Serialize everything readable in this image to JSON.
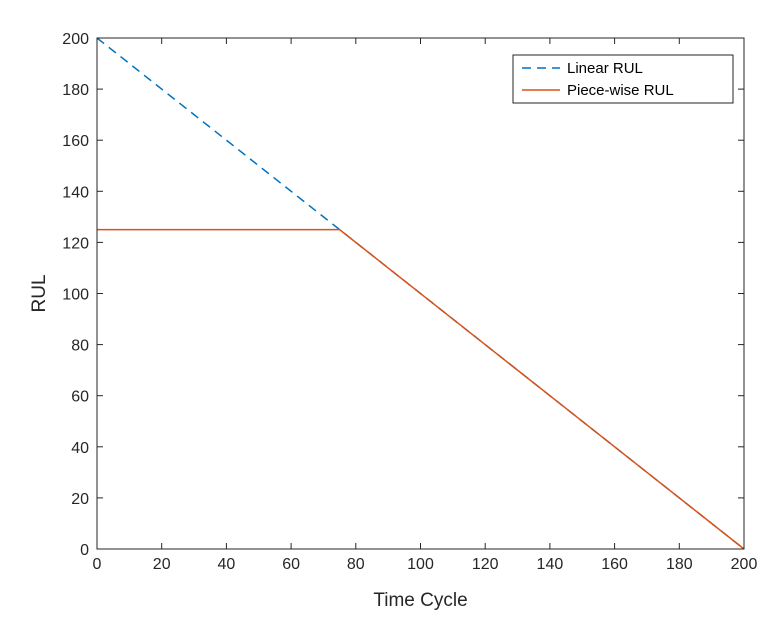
{
  "chart_data": {
    "type": "line",
    "xlabel": "Time Cycle",
    "ylabel": "RUL",
    "xlim": [
      0,
      200
    ],
    "ylim": [
      0,
      200
    ],
    "xticks": [
      "0",
      "20",
      "40",
      "60",
      "80",
      "100",
      "120",
      "140",
      "160",
      "180",
      "200"
    ],
    "yticks": [
      "0",
      "20",
      "40",
      "60",
      "80",
      "100",
      "120",
      "140",
      "160",
      "180",
      "200"
    ],
    "grid": false,
    "legend_position": "top-right",
    "series": [
      {
        "name": "Linear RUL",
        "style": "dashed",
        "color": "#0072BD",
        "points": [
          [
            0,
            200
          ],
          [
            200,
            0
          ]
        ]
      },
      {
        "name": "Piece-wise RUL",
        "style": "solid",
        "color": "#D95319",
        "points": [
          [
            0,
            125
          ],
          [
            75,
            125
          ],
          [
            200,
            0
          ]
        ]
      }
    ]
  }
}
